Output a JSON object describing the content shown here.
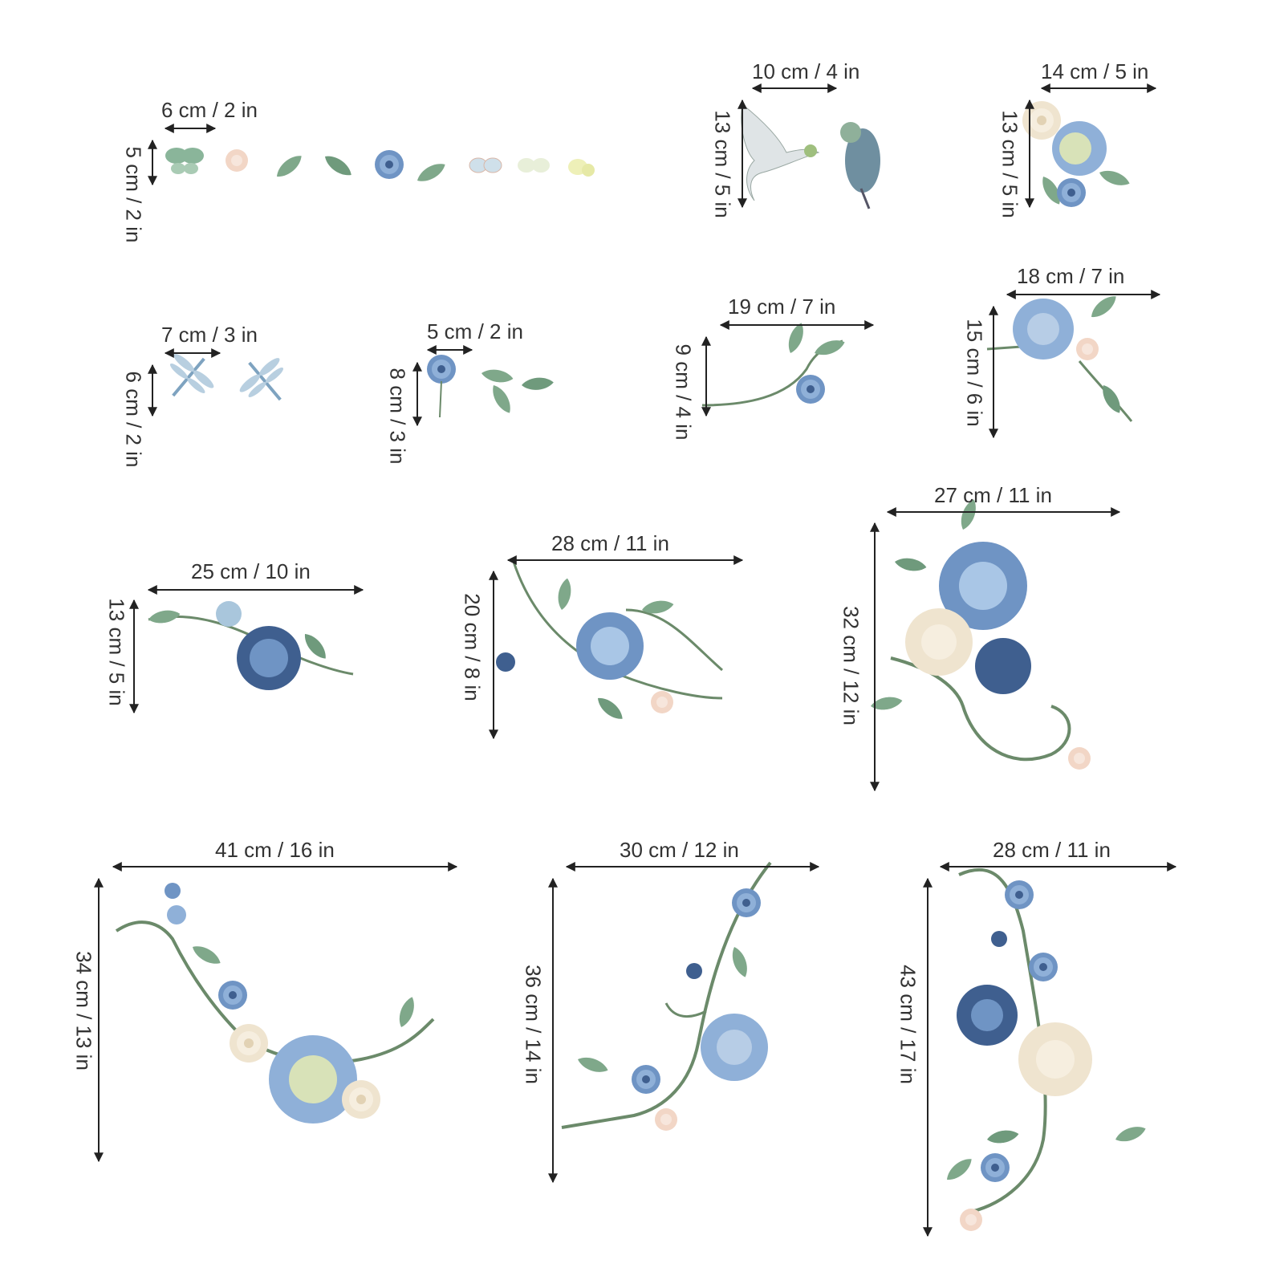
{
  "palette": {
    "arrow": "#222222",
    "leaf": "#7fa88a",
    "leaf_dark": "#4f7a5c",
    "blue": "#6f94c4",
    "blue_dark": "#3f5f8f",
    "cream": "#efe4cf",
    "peach": "#f2d6c6",
    "stem": "#6b8a6a"
  },
  "labels": {
    "s1_w": "6 cm / 2 in",
    "s1_h": "5 cm / 2 in",
    "s2_w": "10 cm / 4 in",
    "s2_h": "13 cm / 5 in",
    "s3_w": "14 cm / 5 in",
    "s3_h": "13 cm / 5 in",
    "s4_w": "7 cm / 3 in",
    "s4_h": "6 cm / 2 in",
    "s5_w": "5 cm / 2 in",
    "s5_h": "8 cm / 3 in",
    "s6_w": "19 cm / 7 in",
    "s6_h": "9 cm / 4 in",
    "s7_w": "18 cm / 7 in",
    "s7_h": "15 cm / 6 in",
    "s8_w": "25 cm / 10 in",
    "s8_h": "13 cm / 5 in",
    "s9_w": "28 cm / 11 in",
    "s9_h": "20 cm / 8 in",
    "s10_w": "27 cm / 11 in",
    "s10_h": "32 cm / 12 in",
    "s11_w": "41 cm / 16 in",
    "s11_h": "34 cm / 13 in",
    "s12_w": "30 cm / 12 in",
    "s12_h": "36 cm / 14 in",
    "s13_w": "28 cm / 11 in",
    "s13_h": "43 cm / 17 in"
  }
}
